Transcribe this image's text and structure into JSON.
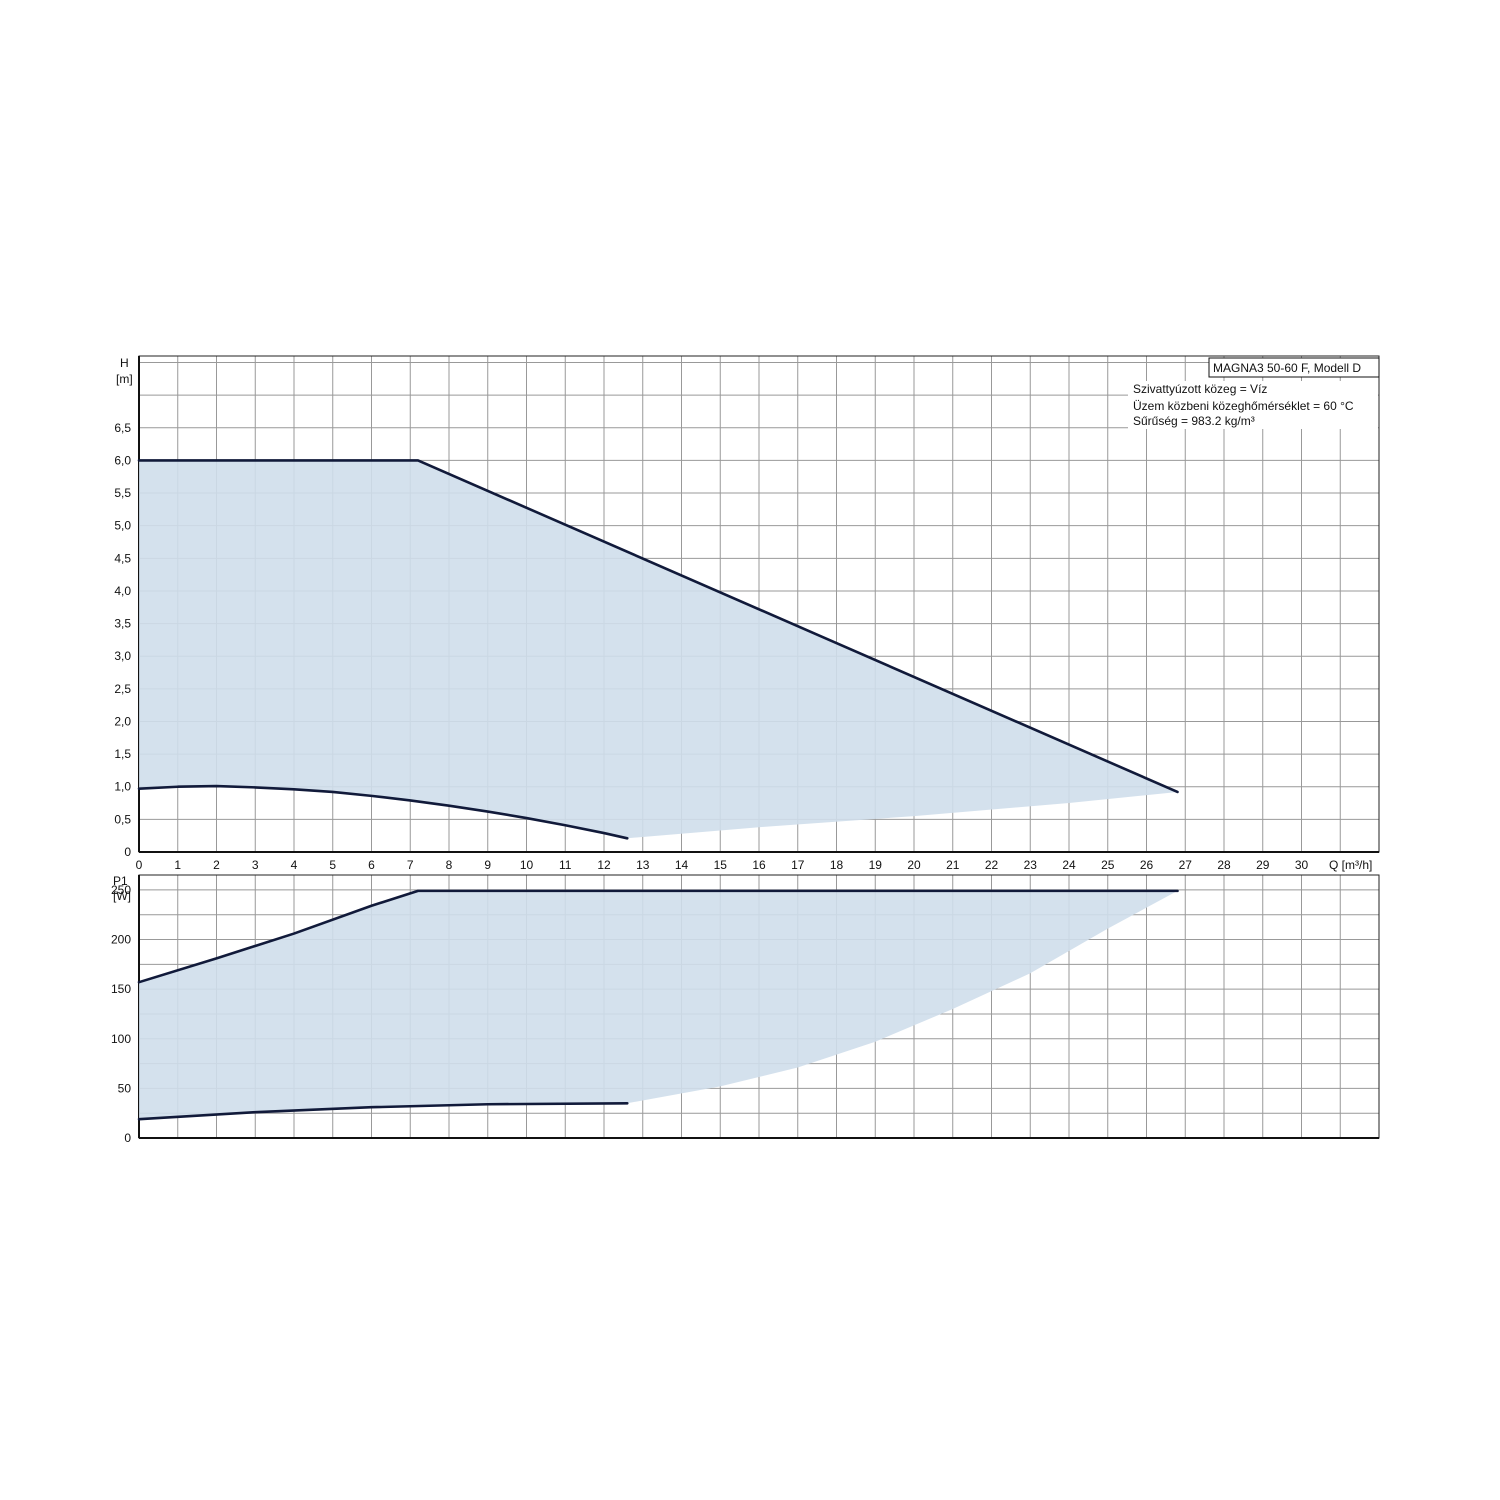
{
  "chart_data": [
    {
      "type": "area",
      "panel": "head",
      "title": "MAGNA3 50-60 F, Modell D",
      "annotations": [
        "Szivattyúzott közeg = Víz",
        "Üzem közbeni közeghőmérséklet = 60 °C",
        "Sűrűség = 983.2 kg/m³"
      ],
      "ylabel": "H",
      "yunit": "[m]",
      "xlabel": "Q [m³/h]",
      "xlim": [
        0,
        32
      ],
      "ylim": [
        0,
        7.5
      ],
      "xticks": [
        0,
        1,
        2,
        3,
        4,
        5,
        6,
        7,
        8,
        9,
        10,
        11,
        12,
        13,
        14,
        15,
        16,
        17,
        18,
        19,
        20,
        21,
        22,
        23,
        24,
        25,
        26,
        27,
        28,
        29,
        30
      ],
      "xtick_labels": [
        "0",
        "1",
        "2",
        "3",
        "4",
        "5",
        "6",
        "7",
        "8",
        "9",
        "10",
        "11",
        "12",
        "13",
        "14",
        "15",
        "16",
        "17",
        "18",
        "19",
        "20",
        "21",
        "22",
        "23",
        "24",
        "25",
        "26",
        "27",
        "28",
        "29",
        "30"
      ],
      "yticks": [
        0,
        0.5,
        1.0,
        1.5,
        2.0,
        2.5,
        3.0,
        3.5,
        4.0,
        4.5,
        5.0,
        5.5,
        6.0,
        6.5
      ],
      "ytick_labels": [
        "0",
        "0,5",
        "1,0",
        "1,5",
        "2,0",
        "2,5",
        "3,0",
        "3,5",
        "4,0",
        "4,5",
        "5,0",
        "5,5",
        "6,0",
        "6,5"
      ],
      "grid": true,
      "series": [
        {
          "role": "max-curve",
          "x": [
            0,
            7.2,
            26.8
          ],
          "y": [
            6.0,
            6.0,
            0.92
          ]
        },
        {
          "role": "min-curve",
          "x": [
            0,
            1,
            2,
            3,
            4,
            5,
            6,
            7,
            8,
            9,
            10,
            11,
            12,
            12.6
          ],
          "y": [
            0.97,
            1.0,
            1.01,
            0.99,
            0.96,
            0.92,
            0.86,
            0.79,
            0.71,
            0.62,
            0.52,
            0.41,
            0.29,
            0.21
          ]
        },
        {
          "role": "area-lower-boundary",
          "x": [
            12.6,
            16,
            20,
            24,
            26.8
          ],
          "y": [
            0.21,
            0.38,
            0.55,
            0.75,
            0.92
          ]
        }
      ]
    },
    {
      "type": "area",
      "panel": "power",
      "ylabel": "P1",
      "yunit": "[W]",
      "xlim": [
        0,
        32
      ],
      "ylim": [
        0,
        250
      ],
      "xticks": [
        0,
        1,
        2,
        3,
        4,
        5,
        6,
        7,
        8,
        9,
        10,
        11,
        12,
        13,
        14,
        15,
        16,
        17,
        18,
        19,
        20,
        21,
        22,
        23,
        24,
        25,
        26,
        27,
        28,
        29,
        30
      ],
      "yticks": [
        0,
        50,
        100,
        150,
        200,
        250
      ],
      "ytick_labels": [
        "0",
        "50",
        "100",
        "150",
        "200",
        "250"
      ],
      "grid": true,
      "series": [
        {
          "role": "max-curve",
          "x": [
            0,
            2,
            4,
            6,
            7.2,
            26.8
          ],
          "y": [
            157,
            181,
            206,
            234,
            249,
            249
          ]
        },
        {
          "role": "min-curve",
          "x": [
            0,
            3,
            6,
            9,
            12.6
          ],
          "y": [
            19,
            26,
            31,
            34,
            35
          ]
        },
        {
          "role": "area-lower-boundary",
          "x": [
            12.6,
            15,
            17,
            19,
            21,
            23,
            25,
            26.8
          ],
          "y": [
            35,
            52,
            71,
            97,
            130,
            166,
            211,
            249
          ]
        }
      ]
    }
  ],
  "colors": {
    "fill": "#cfdeeb",
    "line": "#111a3a",
    "grid": "#999999"
  }
}
